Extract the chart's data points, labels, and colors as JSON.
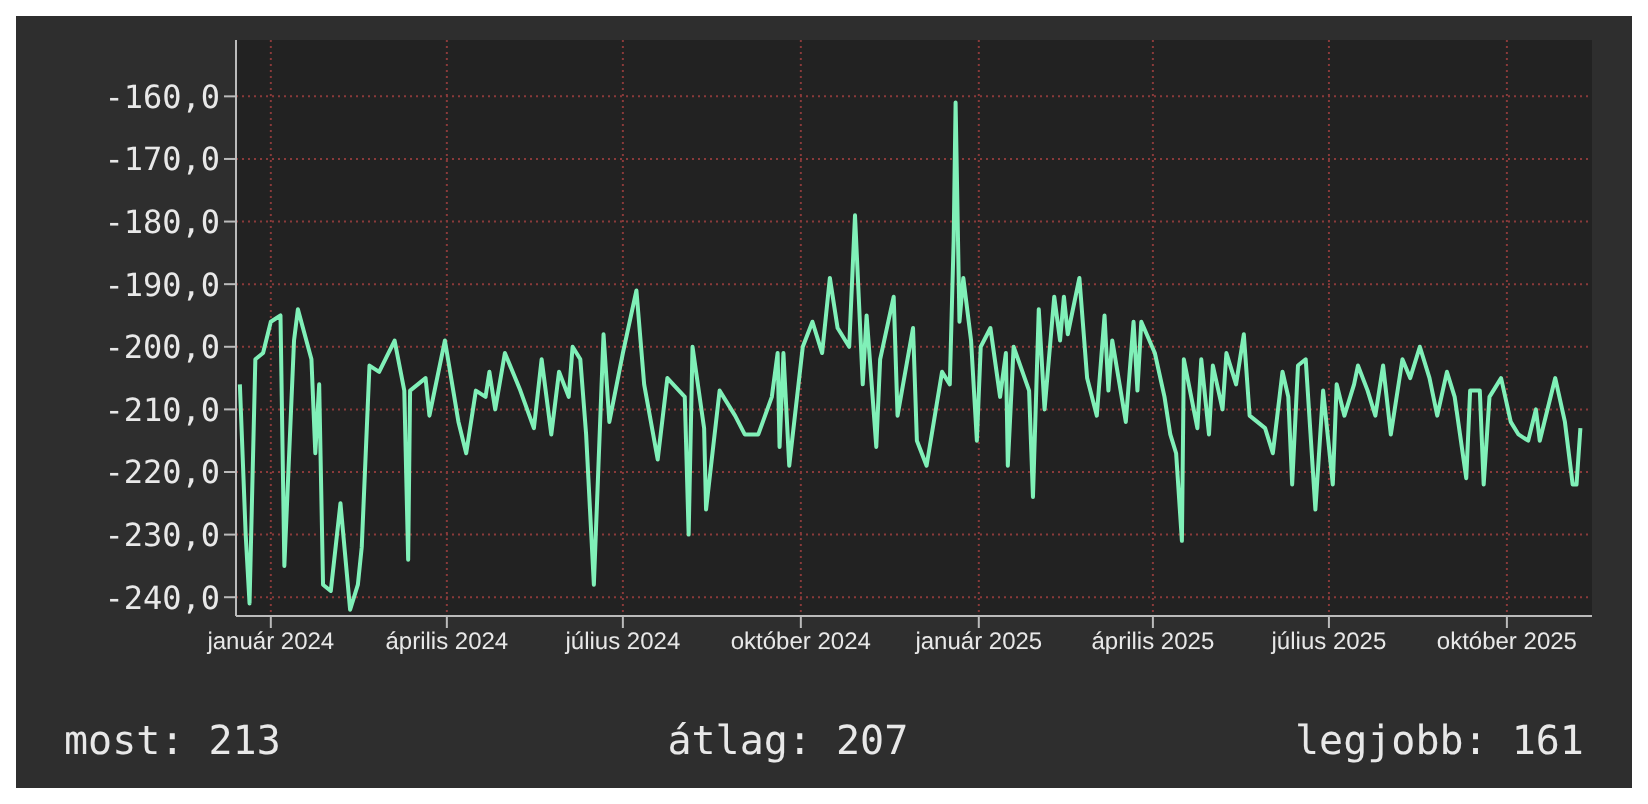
{
  "chart_data": {
    "type": "line",
    "x": [
      "2023-12-16",
      "2023-12-19",
      "2023-12-21",
      "2023-12-24",
      "2023-12-28",
      "2024-01-01",
      "2024-01-06",
      "2024-01-08",
      "2024-01-13",
      "2024-01-15",
      "2024-01-22",
      "2024-01-24",
      "2024-01-26",
      "2024-01-28",
      "2024-02-01",
      "2024-02-06",
      "2024-02-11",
      "2024-02-15",
      "2024-02-17",
      "2024-02-21",
      "2024-02-26",
      "2024-03-05",
      "2024-03-10",
      "2024-03-12",
      "2024-03-13",
      "2024-03-21",
      "2024-03-23",
      "2024-03-31",
      "2024-04-07",
      "2024-04-11",
      "2024-04-16",
      "2024-04-21",
      "2024-04-23",
      "2024-04-26",
      "2024-05-01",
      "2024-05-09",
      "2024-05-16",
      "2024-05-20",
      "2024-05-25",
      "2024-05-29",
      "2024-06-03",
      "2024-06-05",
      "2024-06-09",
      "2024-06-12",
      "2024-06-16",
      "2024-06-21",
      "2024-06-24",
      "2024-07-01",
      "2024-07-08",
      "2024-07-12",
      "2024-07-19",
      "2024-07-24",
      "2024-08-02",
      "2024-08-04",
      "2024-08-06",
      "2024-08-12",
      "2024-08-13",
      "2024-08-20",
      "2024-08-28",
      "2024-09-02",
      "2024-09-09",
      "2024-09-16",
      "2024-09-19",
      "2024-09-20",
      "2024-09-22",
      "2024-09-25",
      "2024-10-02",
      "2024-10-07",
      "2024-10-12",
      "2024-10-16",
      "2024-10-20",
      "2024-10-26",
      "2024-10-29",
      "2024-11-02",
      "2024-11-04",
      "2024-11-09",
      "2024-11-11",
      "2024-11-18",
      "2024-11-20",
      "2024-11-28",
      "2024-11-30",
      "2024-12-05",
      "2024-12-13",
      "2024-12-17",
      "2024-12-19",
      "2024-12-20",
      "2024-12-22",
      "2024-12-24",
      "2024-12-28",
      "2024-12-31",
      "2025-01-02",
      "2025-01-07",
      "2025-01-12",
      "2025-01-15",
      "2025-01-16",
      "2025-01-19",
      "2025-01-27",
      "2025-01-29",
      "2025-02-01",
      "2025-02-04",
      "2025-02-09",
      "2025-02-12",
      "2025-02-14",
      "2025-02-16",
      "2025-02-22",
      "2025-02-26",
      "2025-03-03",
      "2025-03-07",
      "2025-03-09",
      "2025-03-11",
      "2025-03-18",
      "2025-03-22",
      "2025-03-24",
      "2025-03-26",
      "2025-04-02",
      "2025-04-07",
      "2025-04-10",
      "2025-04-13",
      "2025-04-16",
      "2025-04-17",
      "2025-04-24",
      "2025-04-26",
      "2025-04-30",
      "2025-05-02",
      "2025-05-07",
      "2025-05-09",
      "2025-05-14",
      "2025-05-18",
      "2025-05-21",
      "2025-05-29",
      "2025-06-02",
      "2025-06-07",
      "2025-06-10",
      "2025-06-12",
      "2025-06-15",
      "2025-06-19",
      "2025-06-24",
      "2025-06-28",
      "2025-07-03",
      "2025-07-05",
      "2025-07-09",
      "2025-07-14",
      "2025-07-16",
      "2025-07-21",
      "2025-07-25",
      "2025-07-29",
      "2025-08-02",
      "2025-08-08",
      "2025-08-12",
      "2025-08-17",
      "2025-08-22",
      "2025-08-26",
      "2025-08-31",
      "2025-09-04",
      "2025-09-10",
      "2025-09-12",
      "2025-09-17",
      "2025-09-19",
      "2025-09-22",
      "2025-09-28",
      "2025-10-03",
      "2025-10-07",
      "2025-10-12",
      "2025-10-16",
      "2025-10-18",
      "2025-10-26",
      "2025-10-31",
      "2025-11-04",
      "2025-11-06",
      "2025-11-08"
    ],
    "series": [
      {
        "color": "#80f0b8",
        "values": [
          -206,
          -230,
          -241,
          -202,
          -201,
          -196,
          -195,
          -235,
          -199,
          -194,
          -202,
          -217,
          -206,
          -238,
          -239,
          -225,
          -242,
          -238,
          -232,
          -203,
          -204,
          -199,
          -207,
          -234,
          -207,
          -205,
          -211,
          -199,
          -212,
          -217,
          -207,
          -208,
          -204,
          -210,
          -201,
          -207,
          -213,
          -202,
          -214,
          -204,
          -208,
          -200,
          -202,
          -214,
          -238,
          -198,
          -212,
          -201,
          -191,
          -206,
          -218,
          -205,
          -208,
          -230,
          -200,
          -213,
          -226,
          -207,
          -211,
          -214,
          -214,
          -208,
          -201,
          -216,
          -201,
          -219,
          -200,
          -196,
          -201,
          -189,
          -197,
          -200,
          -179,
          -206,
          -195,
          -216,
          -202,
          -192,
          -211,
          -197,
          -215,
          -219,
          -204,
          -206,
          -183,
          -161,
          -196,
          -189,
          -199,
          -215,
          -200,
          -197,
          -208,
          -201,
          -219,
          -200,
          -207,
          -224,
          -194,
          -210,
          -192,
          -199,
          -192,
          -198,
          -189,
          -205,
          -211,
          -195,
          -207,
          -199,
          -212,
          -196,
          -207,
          -196,
          -201,
          -208,
          -214,
          -217,
          -231,
          -202,
          -213,
          -202,
          -214,
          -203,
          -210,
          -201,
          -206,
          -198,
          -211,
          -213,
          -217,
          -204,
          -208,
          -222,
          -203,
          -202,
          -226,
          -207,
          -222,
          -206,
          -211,
          -206,
          -203,
          -207,
          -211,
          -203,
          -214,
          -202,
          -205,
          -200,
          -205,
          -211,
          -204,
          -208,
          -221,
          -207,
          -207,
          -222,
          -208,
          -205,
          -212,
          -214,
          -215,
          -210,
          -215,
          -205,
          -212,
          -222,
          -222,
          -213
        ]
      }
    ],
    "xlim": [
      "2023-12-14",
      "2025-11-14"
    ],
    "xticks": [
      {
        "value": "2024-01-01",
        "label": "január 2024"
      },
      {
        "value": "2024-04-01",
        "label": "április 2024"
      },
      {
        "value": "2024-07-01",
        "label": "július 2024"
      },
      {
        "value": "2024-10-01",
        "label": "október 2024"
      },
      {
        "value": "2025-01-01",
        "label": "január 2025"
      },
      {
        "value": "2025-04-01",
        "label": "április 2025"
      },
      {
        "value": "2025-07-01",
        "label": "július 2025"
      },
      {
        "value": "2025-10-01",
        "label": "október 2025"
      }
    ],
    "ylim": [
      -243,
      -151
    ],
    "yticks": [
      {
        "value": -240,
        "label": "-240,0"
      },
      {
        "value": -230,
        "label": "-230,0"
      },
      {
        "value": -220,
        "label": "-220,0"
      },
      {
        "value": -210,
        "label": "-210,0"
      },
      {
        "value": -200,
        "label": "-200,0"
      },
      {
        "value": -190,
        "label": "-190,0"
      },
      {
        "value": -180,
        "label": "-180,0"
      },
      {
        "value": -170,
        "label": "-170,0"
      },
      {
        "value": -160,
        "label": "-160,0"
      }
    ],
    "grid": true,
    "annotations": [
      "most: 213",
      "átlag: 207",
      "legjobb: 161"
    ]
  }
}
